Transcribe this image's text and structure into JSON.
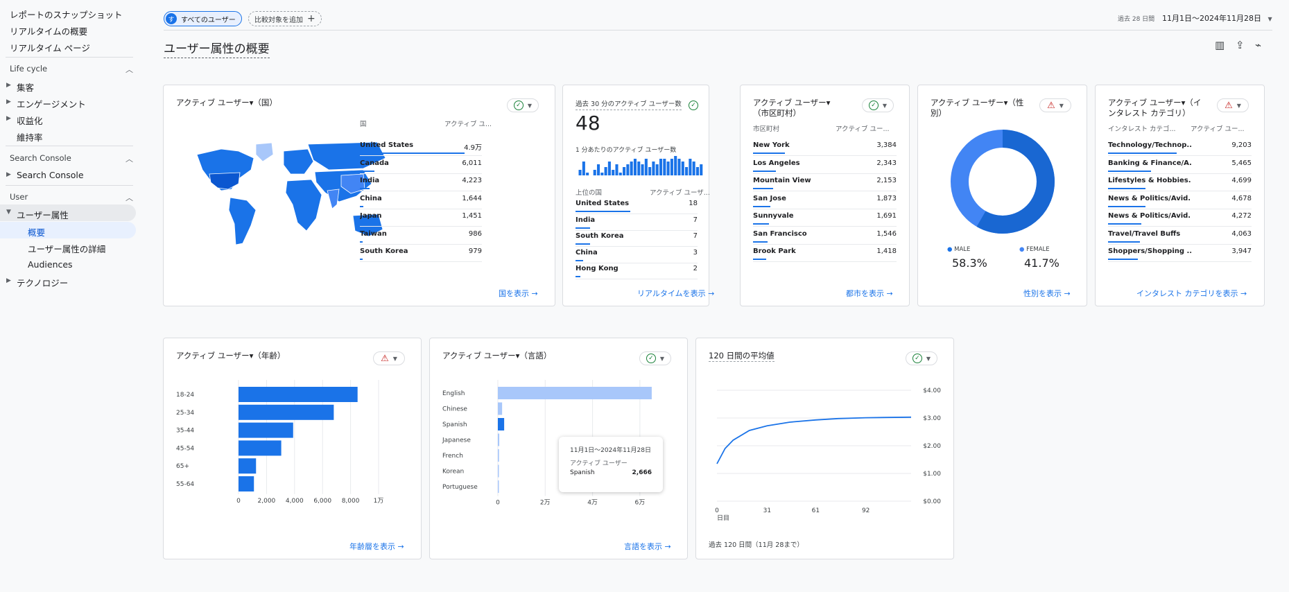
{
  "sidebar": {
    "top_items": [
      "レポートのスナップショット",
      "リアルタイムの概要",
      "リアルタイム ページ"
    ],
    "sections": [
      {
        "label": "Life cycle",
        "items": [
          "集客",
          "エンゲージメント",
          "収益化",
          "維持率"
        ]
      },
      {
        "label": "Search Console",
        "items": [
          "Search Console"
        ]
      },
      {
        "label": "User",
        "items": [
          "ユーザー属性",
          "概要",
          "ユーザー属性の詳細",
          "Audiences",
          "テクノロジー"
        ]
      }
    ]
  },
  "header": {
    "segment_chip": "すべてのユーザー",
    "segment_avatar": "す",
    "compare_button": "比較対象を追加",
    "date_range_label": "過去 28 日間",
    "date_range": "11月1日～2024年11月28日",
    "page_title": "ユーザー属性の概要"
  },
  "cards": {
    "country": {
      "title": "アクティブ ユーザー▾（国）",
      "col1": "国",
      "col2": "アクティブ ユ...",
      "rows": [
        {
          "name": "United States",
          "value": "4.9万",
          "frac": 0.86
        },
        {
          "name": "Canada",
          "value": "6,011",
          "frac": 0.12
        },
        {
          "name": "India",
          "value": "4,223",
          "frac": 0.08
        },
        {
          "name": "China",
          "value": "1,644",
          "frac": 0.03
        },
        {
          "name": "Japan",
          "value": "1,451",
          "frac": 0.03
        },
        {
          "name": "Taiwan",
          "value": "986",
          "frac": 0.02
        },
        {
          "name": "South Korea",
          "value": "979",
          "frac": 0.02
        }
      ],
      "link": "国を表示"
    },
    "realtime": {
      "title": "過去 30 分のアクティブ ユーザー数",
      "count": "48",
      "sub": "1 分あたりのアクティブ ユーザー数",
      "col1": "上位の国",
      "col2": "アクティブ ユーザ...",
      "rows": [
        {
          "name": "United States",
          "value": "18",
          "frac": 0.45
        },
        {
          "name": "India",
          "value": "7",
          "frac": 0.12
        },
        {
          "name": "South Korea",
          "value": "7",
          "frac": 0.12
        },
        {
          "name": "China",
          "value": "3",
          "frac": 0.06
        },
        {
          "name": "Hong Kong",
          "value": "2",
          "frac": 0.04
        }
      ],
      "spark": [
        2,
        5,
        1,
        0,
        2,
        4,
        1,
        3,
        5,
        2,
        4,
        1,
        3,
        4,
        5,
        6,
        5,
        4,
        6,
        3,
        5,
        4,
        6,
        6,
        5,
        6,
        7,
        6,
        5,
        3,
        6,
        5,
        3,
        4
      ],
      "link": "リアルタイムを表示"
    },
    "city": {
      "title": "アクティブ ユーザー▾（市区町村）",
      "col1": "市区町村",
      "col2": "アクティブ ユー...",
      "rows": [
        {
          "name": "New York",
          "value": "3,384",
          "frac": 0.22
        },
        {
          "name": "Los Angeles",
          "value": "2,343",
          "frac": 0.16
        },
        {
          "name": "Mountain View",
          "value": "2,153",
          "frac": 0.14
        },
        {
          "name": "San Jose",
          "value": "1,873",
          "frac": 0.12
        },
        {
          "name": "Sunnyvale",
          "value": "1,691",
          "frac": 0.11
        },
        {
          "name": "San Francisco",
          "value": "1,546",
          "frac": 0.1
        },
        {
          "name": "Brook Park",
          "value": "1,418",
          "frac": 0.09
        }
      ],
      "link": "都市を表示"
    },
    "gender": {
      "title": "アクティブ ユーザー▾（性別）",
      "male_label": "MALE",
      "male_value": "58.3%",
      "female_label": "FEMALE",
      "female_value": "41.7%",
      "male_frac": 0.583,
      "link": "性別を表示"
    },
    "interest": {
      "title": "アクティブ ユーザー▾（インタレスト カテゴリ）",
      "col1": "インタレスト カテゴ...",
      "col2": "アクティブ ユー...",
      "rows": [
        {
          "name": "Technology/Technop...",
          "value": "9,203",
          "frac": 0.48
        },
        {
          "name": "Banking & Finance/A...",
          "value": "5,465",
          "frac": 0.3
        },
        {
          "name": "Lifestyles & Hobbies...",
          "value": "4,699",
          "frac": 0.26
        },
        {
          "name": "News & Politics/Avid...",
          "value": "4,678",
          "frac": 0.26
        },
        {
          "name": "News & Politics/Avid...",
          "value": "4,272",
          "frac": 0.23
        },
        {
          "name": "Travel/Travel Buffs",
          "value": "4,063",
          "frac": 0.22
        },
        {
          "name": "Shoppers/Shopping ...",
          "value": "3,947",
          "frac": 0.21
        }
      ],
      "link": "インタレスト カテゴリを表示"
    },
    "age": {
      "title": "アクティブ ユーザー▾（年齢）",
      "link": "年齢層を表示"
    },
    "language": {
      "title": "アクティブ ユーザー▾（言語）",
      "tooltip_date": "11月1日～2024年11月28日",
      "tooltip_metric": "アクティブ ユーザー",
      "tooltip_name": "Spanish",
      "tooltip_value": "2,666",
      "link": "言語を表示"
    },
    "ltv": {
      "title": "120 日間の平均値",
      "footer": "過去 120 日間（11月 28まで）"
    }
  },
  "chart_data": [
    {
      "type": "bar",
      "orientation": "horizontal",
      "categories": [
        "18-24",
        "25-34",
        "35-44",
        "45-54",
        "65+",
        "55-64"
      ],
      "values": [
        8500,
        6800,
        3900,
        3050,
        1250,
        1100
      ],
      "xlim": [
        0,
        10000
      ],
      "xticks": [
        "0",
        "2,000",
        "4,000",
        "6,000",
        "8,000",
        "1万"
      ]
    },
    {
      "type": "bar",
      "orientation": "horizontal",
      "categories": [
        "English",
        "Chinese",
        "Spanish",
        "Japanese",
        "French",
        "Korean",
        "Portuguese"
      ],
      "values": [
        65000,
        1800,
        2666,
        600,
        500,
        400,
        300
      ],
      "xlim": [
        0,
        70000
      ],
      "xticks": [
        "0",
        "2万",
        "4万",
        "6万"
      ]
    },
    {
      "type": "line",
      "x": [
        0,
        5,
        10,
        20,
        31,
        45,
        61,
        75,
        92,
        105,
        120
      ],
      "y": [
        1.35,
        1.9,
        2.2,
        2.55,
        2.72,
        2.85,
        2.93,
        2.98,
        3.01,
        3.02,
        3.03
      ],
      "ylim": [
        0,
        4
      ],
      "yticks": [
        "$0.00",
        "$1.00",
        "$2.00",
        "$3.00",
        "$4.00"
      ],
      "xticks": [
        "0",
        "31",
        "61",
        "92"
      ],
      "xtick_sub": "日目"
    }
  ],
  "colors": {
    "primary": "#1a73e8",
    "light": "#a8c7fa",
    "dark": "#0b57d0"
  }
}
